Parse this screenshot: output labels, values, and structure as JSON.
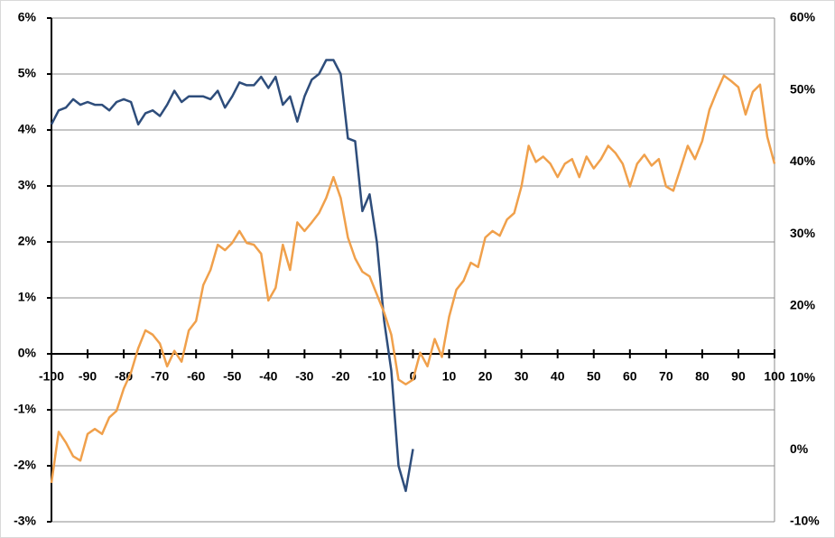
{
  "chart_data": {
    "type": "line",
    "xlim": [
      -100,
      100
    ],
    "xticks": [
      -100,
      -90,
      -80,
      -70,
      -60,
      -50,
      -40,
      -30,
      -20,
      -10,
      0,
      10,
      20,
      30,
      40,
      50,
      60,
      70,
      80,
      90,
      100
    ],
    "ylim": [
      -3,
      6
    ],
    "yticks": [
      {
        "value": -3,
        "label": "-3%"
      },
      {
        "value": -2,
        "label": "-2%"
      },
      {
        "value": -1,
        "label": "-1%"
      },
      {
        "value": 0,
        "label": "0%"
      },
      {
        "value": 1,
        "label": "1%"
      },
      {
        "value": 2,
        "label": "2%"
      },
      {
        "value": 3,
        "label": "3%"
      },
      {
        "value": 4,
        "label": "4%"
      },
      {
        "value": 5,
        "label": "5%"
      },
      {
        "value": 6,
        "label": "6%"
      }
    ],
    "y2lim": [
      -10,
      60
    ],
    "y2ticks": [
      {
        "value": -10,
        "label": "-10%"
      },
      {
        "value": 0,
        "label": "0%"
      },
      {
        "value": 10,
        "label": "10%"
      },
      {
        "value": 20,
        "label": "20%"
      },
      {
        "value": 30,
        "label": "30%"
      },
      {
        "value": 40,
        "label": "40%"
      },
      {
        "value": 50,
        "label": "50%"
      },
      {
        "value": 60,
        "label": "60%"
      }
    ],
    "grid": true,
    "series": [
      {
        "color": "#2e4d7b",
        "axis": "y",
        "x": [
          -100,
          -98,
          -96,
          -94,
          -92,
          -90,
          -88,
          -86,
          -84,
          -82,
          -80,
          -78,
          -76,
          -74,
          -72,
          -70,
          -68,
          -66,
          -64,
          -62,
          -60,
          -58,
          -56,
          -54,
          -52,
          -50,
          -48,
          -46,
          -44,
          -42,
          -40,
          -38,
          -36,
          -34,
          -32,
          -30,
          -28,
          -26,
          -24,
          -22,
          -20,
          -18,
          -16,
          -14,
          -12,
          -10,
          -8,
          -6,
          -4,
          -2,
          0
        ],
        "values": [
          4.1,
          4.35,
          4.4,
          4.55,
          4.45,
          4.5,
          4.45,
          4.45,
          4.35,
          4.5,
          4.55,
          4.5,
          4.1,
          4.3,
          4.35,
          4.25,
          4.45,
          4.7,
          4.5,
          4.6,
          4.6,
          4.6,
          4.55,
          4.7,
          4.4,
          4.6,
          4.85,
          4.8,
          4.8,
          4.95,
          4.75,
          4.95,
          4.45,
          4.6,
          4.15,
          4.6,
          4.9,
          5.0,
          5.25,
          5.25,
          5.0,
          3.85,
          3.8,
          2.55,
          2.85,
          2.0,
          0.6,
          -0.3,
          -2.0,
          -2.45,
          -1.7
        ]
      },
      {
        "color": "#f0a04b",
        "axis": "y2",
        "x": [
          -100,
          -98,
          -96,
          -94,
          -92,
          -90,
          -88,
          -86,
          -84,
          -82,
          -80,
          -78,
          -76,
          -74,
          -72,
          -70,
          -68,
          -66,
          -64,
          -62,
          -60,
          -58,
          -56,
          -54,
          -52,
          -50,
          -48,
          -46,
          -44,
          -42,
          -40,
          -38,
          -36,
          -34,
          -32,
          -30,
          -28,
          -26,
          -24,
          -22,
          -20,
          -18,
          -16,
          -14,
          -12,
          -10,
          -8,
          -6,
          -4,
          -2,
          0,
          2,
          4,
          6,
          8,
          10,
          12,
          14,
          16,
          18,
          20,
          22,
          24,
          26,
          28,
          30,
          32,
          34,
          36,
          38,
          40,
          42,
          44,
          46,
          48,
          50,
          52,
          54,
          56,
          58,
          60,
          62,
          64,
          66,
          68,
          70,
          72,
          74,
          76,
          78,
          80,
          82,
          84,
          86,
          88,
          90,
          92,
          94,
          96,
          98,
          100
        ],
        "values": [
          -4.6,
          2.5,
          1,
          -0.9,
          -1.5,
          2.2,
          2.9,
          2.2,
          4.5,
          5.4,
          8.5,
          10.75,
          14.1,
          16.6,
          16,
          14.75,
          11.6,
          13.75,
          12.25,
          16.6,
          17.9,
          22.9,
          25,
          28.5,
          27.75,
          28.75,
          30.4,
          28.75,
          28.5,
          27.25,
          20.75,
          22.5,
          28.5,
          25,
          31.6,
          30.4,
          31.6,
          32.9,
          35,
          37.9,
          35,
          29.5,
          26.6,
          24.75,
          24.1,
          21.6,
          19.1,
          16,
          9.75,
          9.1,
          9.75,
          13.5,
          11.6,
          15.4,
          12.9,
          18.5,
          22.25,
          23.5,
          26,
          25.4,
          29.5,
          30.4,
          29.75,
          32,
          32.9,
          36.6,
          42.25,
          40,
          40.75,
          39.75,
          37.9,
          39.75,
          40.4,
          37.9,
          40.75,
          39.1,
          40.4,
          42.25,
          41.25,
          39.75,
          36.6,
          39.75,
          41,
          39.5,
          40.4,
          36.6,
          36,
          39.1,
          42.25,
          40.4,
          42.9,
          47.25,
          49.75,
          52,
          51.25,
          50.4,
          46.6,
          49.75,
          50.75,
          43.5,
          39.75
        ]
      }
    ]
  }
}
